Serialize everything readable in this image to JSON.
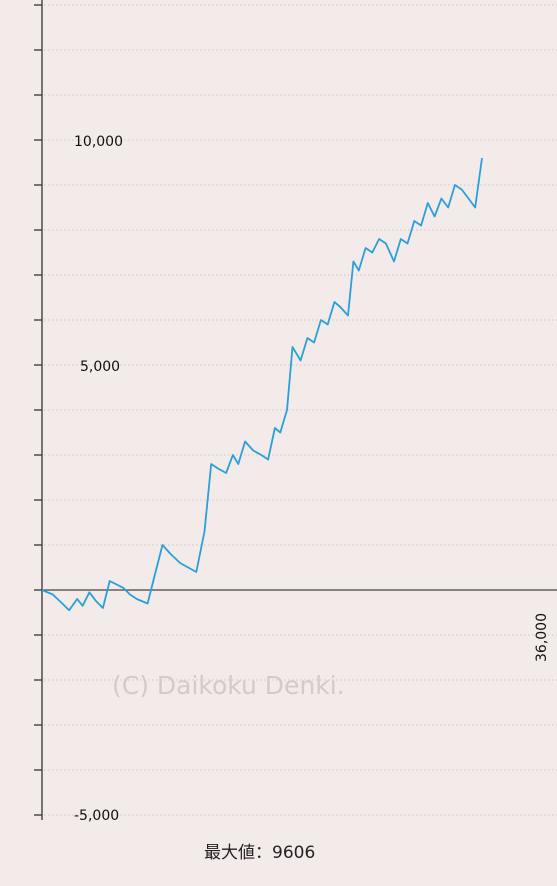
{
  "chart_data": {
    "type": "line",
    "title": "",
    "xlabel": "",
    "ylabel": "",
    "xlim": [
      0,
      36000
    ],
    "ylim": [
      -5000,
      13250
    ],
    "x_tick_labels": [
      "36,000"
    ],
    "y_tick_labels": [
      "10,000",
      "5,000",
      "-5,000"
    ],
    "minor_grid_step": 1000,
    "grid": true,
    "series": [
      {
        "color": "#2b9fd8",
        "points": [
          [
            0,
            0
          ],
          [
            800,
            -100
          ],
          [
            1500,
            -300
          ],
          [
            2000,
            -450
          ],
          [
            2600,
            -200
          ],
          [
            3000,
            -350
          ],
          [
            3500,
            -50
          ],
          [
            4000,
            -250
          ],
          [
            4500,
            -400
          ],
          [
            5000,
            200
          ],
          [
            6000,
            50
          ],
          [
            6500,
            -100
          ],
          [
            7000,
            -200
          ],
          [
            7800,
            -300
          ],
          [
            8300,
            300
          ],
          [
            8900,
            1000
          ],
          [
            9500,
            800
          ],
          [
            10200,
            600
          ],
          [
            10800,
            500
          ],
          [
            11400,
            400
          ],
          [
            12000,
            1300
          ],
          [
            12500,
            2800
          ],
          [
            13000,
            2700
          ],
          [
            13600,
            2600
          ],
          [
            14100,
            3000
          ],
          [
            14500,
            2800
          ],
          [
            15000,
            3300
          ],
          [
            15600,
            3100
          ],
          [
            16200,
            3000
          ],
          [
            16700,
            2900
          ],
          [
            17200,
            3600
          ],
          [
            17600,
            3500
          ],
          [
            18100,
            4000
          ],
          [
            18500,
            5400
          ],
          [
            19100,
            5100
          ],
          [
            19600,
            5600
          ],
          [
            20100,
            5500
          ],
          [
            20600,
            6000
          ],
          [
            21100,
            5900
          ],
          [
            21600,
            6400
          ],
          [
            22000,
            6300
          ],
          [
            22600,
            6100
          ],
          [
            23000,
            7300
          ],
          [
            23400,
            7100
          ],
          [
            23900,
            7600
          ],
          [
            24400,
            7500
          ],
          [
            24900,
            7800
          ],
          [
            25400,
            7700
          ],
          [
            26000,
            7300
          ],
          [
            26500,
            7800
          ],
          [
            27000,
            7700
          ],
          [
            27500,
            8200
          ],
          [
            28000,
            8100
          ],
          [
            28500,
            8600
          ],
          [
            29000,
            8300
          ],
          [
            29500,
            8700
          ],
          [
            30000,
            8500
          ],
          [
            30500,
            9000
          ],
          [
            31000,
            8900
          ],
          [
            31500,
            8700
          ],
          [
            32000,
            8500
          ],
          [
            32500,
            9600
          ]
        ]
      }
    ],
    "watermark": "(C) Daikoku Denki.",
    "footer_label": "最大値：9606"
  }
}
